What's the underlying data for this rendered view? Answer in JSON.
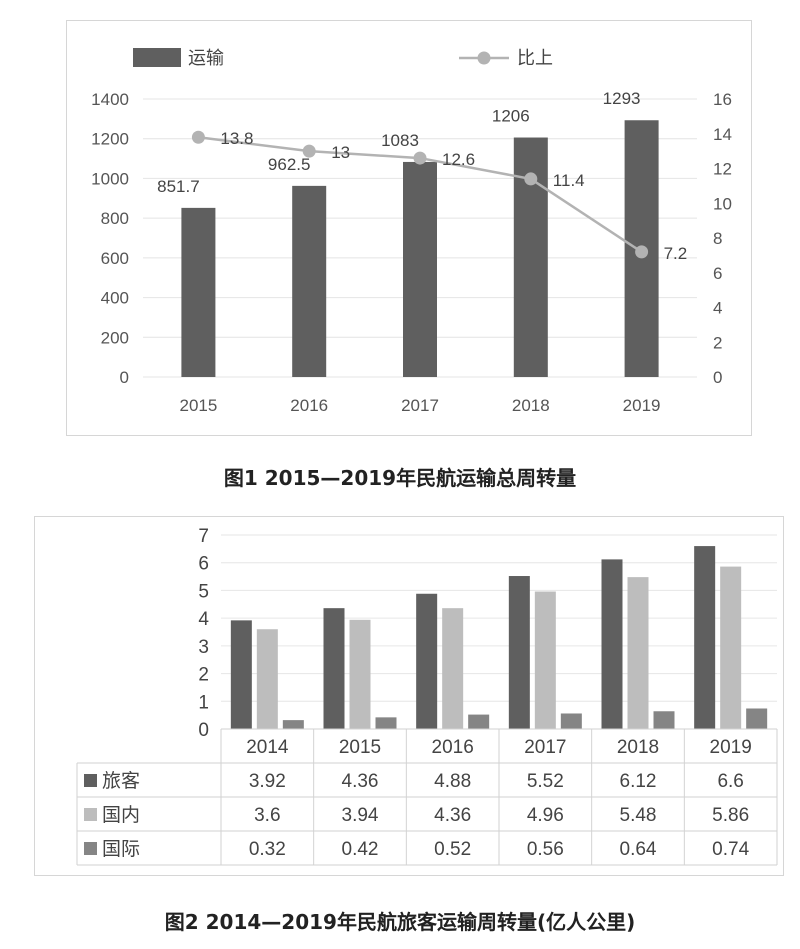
{
  "chart_data": [
    {
      "type": "bar",
      "categories": [
        "2015",
        "2016",
        "2017",
        "2018",
        "2019"
      ],
      "series": [
        {
          "name": "运输",
          "chart": "bar",
          "axis": "left",
          "values": [
            851.7,
            962.5,
            1083,
            1206,
            1293
          ],
          "labels": [
            "851.7",
            "962.5",
            "1083",
            "1206",
            "1293"
          ],
          "color": "#5f5f5f"
        },
        {
          "name": "比上",
          "chart": "line",
          "axis": "right",
          "values": [
            13.8,
            13,
            12.6,
            11.4,
            7.2
          ],
          "labels": [
            "13.8",
            "13",
            "12.6",
            "11.4",
            "7.2"
          ],
          "color": "#b3b3b3"
        }
      ],
      "ylim": [
        0,
        1400
      ],
      "yticks": [
        "0",
        "200",
        "400",
        "600",
        "800",
        "1000",
        "1200",
        "1400"
      ],
      "y2lim": [
        0,
        16
      ],
      "y2ticks": [
        "0",
        "2",
        "4",
        "6",
        "8",
        "10",
        "12",
        "14",
        "16"
      ],
      "grid": true,
      "legend": "top"
    },
    {
      "type": "bar",
      "categories": [
        "2014",
        "2015",
        "2016",
        "2017",
        "2018",
        "2019"
      ],
      "series": [
        {
          "name": "旅客",
          "values": [
            3.92,
            4.36,
            4.88,
            5.52,
            6.12,
            6.6
          ],
          "labels": [
            "3.92",
            "4.36",
            "4.88",
            "5.52",
            "6.12",
            "6.6"
          ],
          "color": "#5f5f5f"
        },
        {
          "name": "国内",
          "values": [
            3.6,
            3.94,
            4.36,
            4.96,
            5.48,
            5.86
          ],
          "labels": [
            "3.6",
            "3.94",
            "4.36",
            "4.96",
            "5.48",
            "5.86"
          ],
          "color": "#bdbdbd"
        },
        {
          "name": "国际",
          "values": [
            0.32,
            0.42,
            0.52,
            0.56,
            0.64,
            0.74
          ],
          "labels": [
            "0.32",
            "0.42",
            "0.52",
            "0.56",
            "0.64",
            "0.74"
          ],
          "color": "#858585"
        }
      ],
      "ylim": [
        0,
        7
      ],
      "yticks": [
        "0",
        "1",
        "2",
        "3",
        "4",
        "5",
        "6",
        "7"
      ],
      "grid": true,
      "legend": "data-table"
    }
  ],
  "captions": {
    "fig1": "图1  2015—2019年民航运输总周转量",
    "fig2": "图2  2014—2019年民航旅客运输周转量(亿人公里)"
  }
}
